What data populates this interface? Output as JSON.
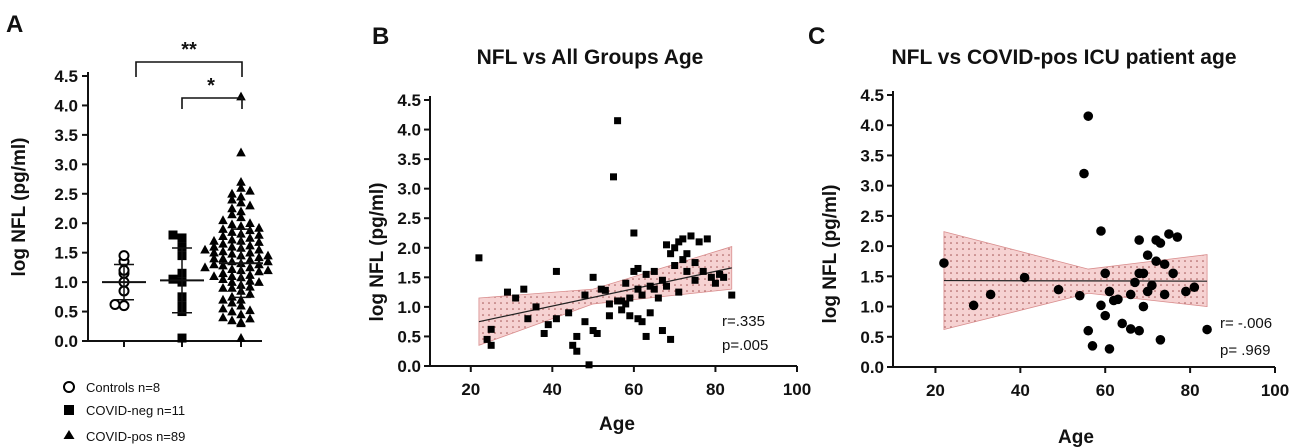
{
  "panels": {
    "A": {
      "letter": "A",
      "ylabel": "log NFL (pg/ml)",
      "yticks": [
        "0.0",
        "0.5",
        "1.0",
        "1.5",
        "2.0",
        "2.5",
        "3.0",
        "3.5",
        "4.0",
        "4.5"
      ],
      "legend": [
        {
          "label": "Controls n=8",
          "marker": "open-circle"
        },
        {
          "label": "COVID-neg n=11",
          "marker": "filled-square"
        },
        {
          "label": "COVID-pos n=89",
          "marker": "filled-triangle"
        }
      ],
      "sig_top": "**",
      "sig_bottom": "*"
    },
    "B": {
      "letter": "B",
      "title": "NFL vs All Groups Age",
      "xlabel": "Age",
      "ylabel": "log NFL (pg/ml)",
      "xticks": [
        "20",
        "40",
        "60",
        "80",
        "100"
      ],
      "yticks": [
        "0.0",
        "0.5",
        "1.0",
        "1.5",
        "2.0",
        "2.5",
        "3.0",
        "3.5",
        "4.0",
        "4.5"
      ],
      "stat_r": "r=.335",
      "stat_p": "p=.005"
    },
    "C": {
      "letter": "C",
      "title": "NFL vs COVID-pos ICU patient age",
      "xlabel": "Age",
      "ylabel": "log NFL (pg/ml)",
      "xticks": [
        "20",
        "40",
        "60",
        "80",
        "100"
      ],
      "yticks": [
        "0.0",
        "0.5",
        "1.0",
        "1.5",
        "2.0",
        "2.5",
        "3.0",
        "3.5",
        "4.0",
        "4.5"
      ],
      "stat_r": "r= -.006",
      "stat_p": "p= .969"
    }
  },
  "colors": {
    "marker": "#000000",
    "ci_band": "#f4c6c6",
    "ci_edge": "#d98e8e",
    "fit_line": "#222222"
  },
  "chart_data": [
    {
      "type": "scatter",
      "panel": "A",
      "categories": [
        "Controls n=8",
        "COVID-neg n=11",
        "COVID-pos n=89"
      ],
      "ylabel": "log NFL (pg/ml)",
      "ylim": [
        0,
        4.5
      ],
      "series": [
        {
          "name": "Controls n=8",
          "marker": "open-circle",
          "values": [
            0.6,
            0.62,
            0.85,
            1.0,
            1.15,
            1.2,
            1.35,
            1.45
          ],
          "mean": 1.0,
          "sd": 0.3
        },
        {
          "name": "COVID-neg n=11",
          "marker": "filled-square",
          "values": [
            0.05,
            0.5,
            0.6,
            0.75,
            1.0,
            1.05,
            1.15,
            1.45,
            1.6,
            1.75,
            1.8
          ],
          "mean": 1.03,
          "sd": 0.55
        },
        {
          "name": "COVID-pos n=89",
          "marker": "filled-triangle",
          "values": [
            0.05,
            0.3,
            0.32,
            0.35,
            0.38,
            0.4,
            0.45,
            0.5,
            0.52,
            0.55,
            0.6,
            0.65,
            0.7,
            0.75,
            0.8,
            0.85,
            0.9,
            0.92,
            0.95,
            1.0,
            1.02,
            1.05,
            1.08,
            1.1,
            1.12,
            1.15,
            1.18,
            1.2,
            1.22,
            1.25,
            1.28,
            1.3,
            1.32,
            1.35,
            1.38,
            1.4,
            1.42,
            1.45,
            1.48,
            1.5,
            1.52,
            1.55,
            1.58,
            1.6,
            1.62,
            1.65,
            1.68,
            1.7,
            1.72,
            1.75,
            1.78,
            1.8,
            1.82,
            1.85,
            1.88,
            1.9,
            1.92,
            1.95,
            1.98,
            2.0,
            2.05,
            2.1,
            2.15,
            2.2,
            2.25,
            2.3,
            2.35,
            2.4,
            2.45,
            2.5,
            2.6,
            2.7,
            1.0,
            1.1,
            1.3,
            1.4,
            1.5,
            1.6,
            1.2,
            0.7,
            0.9,
            1.7,
            1.45,
            1.35,
            1.55,
            1.25,
            2.55,
            3.2,
            4.15
          ],
          "mean": 1.32,
          "sd": 0.58
        }
      ],
      "significance": [
        {
          "from": "Controls n=8",
          "to": "COVID-pos n=89",
          "label": "**"
        },
        {
          "from": "COVID-neg n=11",
          "to": "COVID-pos n=89",
          "label": "*"
        }
      ]
    },
    {
      "type": "scatter",
      "panel": "B",
      "title": "NFL vs All Groups Age",
      "xlabel": "Age",
      "ylabel": "log NFL (pg/ml)",
      "xlim": [
        10,
        100
      ],
      "ylim": [
        0,
        4.5
      ],
      "points": [
        [
          22,
          1.83
        ],
        [
          24,
          0.45
        ],
        [
          25,
          0.35
        ],
        [
          25,
          0.62
        ],
        [
          29,
          1.25
        ],
        [
          31,
          1.15
        ],
        [
          33,
          1.3
        ],
        [
          34,
          0.8
        ],
        [
          36,
          1.0
        ],
        [
          38,
          0.55
        ],
        [
          39,
          0.7
        ],
        [
          41,
          0.8
        ],
        [
          41,
          1.6
        ],
        [
          44,
          0.9
        ],
        [
          45,
          0.35
        ],
        [
          46,
          0.25
        ],
        [
          46,
          0.5
        ],
        [
          48,
          1.2
        ],
        [
          48,
          0.75
        ],
        [
          49,
          0.02
        ],
        [
          50,
          0.6
        ],
        [
          50,
          1.5
        ],
        [
          51,
          0.55
        ],
        [
          52,
          1.3
        ],
        [
          53,
          1.28
        ],
        [
          54,
          0.85
        ],
        [
          54,
          1.05
        ],
        [
          55,
          3.2
        ],
        [
          56,
          4.15
        ],
        [
          56,
          1.1
        ],
        [
          57,
          1.1
        ],
        [
          57,
          0.95
        ],
        [
          58,
          1.05
        ],
        [
          58,
          1.4
        ],
        [
          59,
          0.85
        ],
        [
          59,
          1.15
        ],
        [
          60,
          2.25
        ],
        [
          60,
          1.6
        ],
        [
          61,
          1.65
        ],
        [
          61,
          0.8
        ],
        [
          61,
          1.3
        ],
        [
          62,
          0.75
        ],
        [
          62,
          1.2
        ],
        [
          63,
          1.55
        ],
        [
          63,
          0.5
        ],
        [
          64,
          1.35
        ],
        [
          64,
          0.9
        ],
        [
          65,
          1.6
        ],
        [
          65,
          1.3
        ],
        [
          66,
          1.15
        ],
        [
          67,
          1.45
        ],
        [
          67,
          0.6
        ],
        [
          68,
          2.05
        ],
        [
          68,
          1.35
        ],
        [
          69,
          1.9
        ],
        [
          69,
          0.45
        ],
        [
          70,
          1.7
        ],
        [
          70,
          2.0
        ],
        [
          71,
          1.25
        ],
        [
          71,
          2.1
        ],
        [
          72,
          1.8
        ],
        [
          72,
          2.15
        ],
        [
          73,
          1.6
        ],
        [
          73,
          1.9
        ],
        [
          74,
          2.2
        ],
        [
          75,
          1.45
        ],
        [
          75,
          1.75
        ],
        [
          76,
          2.1
        ],
        [
          77,
          1.6
        ],
        [
          78,
          2.15
        ],
        [
          79,
          1.5
        ],
        [
          80,
          1.4
        ],
        [
          81,
          1.55
        ],
        [
          82,
          1.5
        ],
        [
          84,
          1.2
        ]
      ],
      "fit": {
        "x": [
          22,
          84
        ],
        "y": [
          0.75,
          1.66
        ]
      },
      "ci": {
        "x": [
          22,
          50,
          84
        ],
        "lower": [
          0.35,
          1.05,
          1.3
        ],
        "upper": [
          1.15,
          1.3,
          2.02
        ]
      },
      "annotations": [
        "r=.335",
        "p=.005"
      ]
    },
    {
      "type": "scatter",
      "panel": "C",
      "title": "NFL vs COVID-pos ICU patient age",
      "xlabel": "Age",
      "ylabel": "log NFL (pg/ml)",
      "xlim": [
        10,
        100
      ],
      "ylim": [
        0,
        4.5
      ],
      "points": [
        [
          22,
          1.72
        ],
        [
          29,
          1.02
        ],
        [
          33,
          1.2
        ],
        [
          41,
          1.48
        ],
        [
          49,
          1.28
        ],
        [
          54,
          1.18
        ],
        [
          55,
          3.2
        ],
        [
          56,
          4.15
        ],
        [
          56,
          0.6
        ],
        [
          57,
          0.35
        ],
        [
          59,
          2.25
        ],
        [
          59,
          1.02
        ],
        [
          60,
          0.85
        ],
        [
          60,
          1.55
        ],
        [
          61,
          1.25
        ],
        [
          61,
          0.3
        ],
        [
          62,
          1.1
        ],
        [
          63,
          1.12
        ],
        [
          64,
          0.72
        ],
        [
          66,
          1.2
        ],
        [
          66,
          0.63
        ],
        [
          67,
          1.4
        ],
        [
          68,
          1.55
        ],
        [
          68,
          2.1
        ],
        [
          68,
          0.6
        ],
        [
          69,
          1.0
        ],
        [
          69,
          1.55
        ],
        [
          70,
          1.85
        ],
        [
          70,
          1.25
        ],
        [
          71,
          1.35
        ],
        [
          72,
          2.1
        ],
        [
          72,
          1.75
        ],
        [
          73,
          2.05
        ],
        [
          73,
          0.45
        ],
        [
          74,
          1.2
        ],
        [
          74,
          1.7
        ],
        [
          75,
          2.2
        ],
        [
          76,
          1.55
        ],
        [
          77,
          2.15
        ],
        [
          79,
          1.25
        ],
        [
          81,
          1.32
        ],
        [
          84,
          0.62
        ]
      ],
      "fit": {
        "x": [
          22,
          84
        ],
        "y": [
          1.43,
          1.42
        ]
      },
      "ci": {
        "x": [
          22,
          56,
          84
        ],
        "lower": [
          0.62,
          1.22,
          1.0
        ],
        "upper": [
          2.24,
          1.62,
          1.86
        ]
      },
      "annotations": [
        "r= -.006",
        "p= .969"
      ]
    }
  ]
}
